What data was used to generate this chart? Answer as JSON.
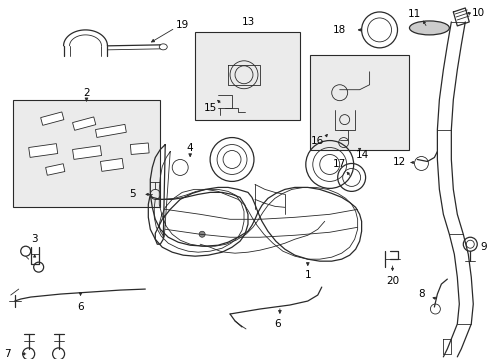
{
  "bg_color": "#ffffff",
  "line_color": "#2a2a2a",
  "label_color": "#000000",
  "fig_width": 4.89,
  "fig_height": 3.6,
  "dpi": 100,
  "tank_color": "#f8f8f8",
  "box_color": "#ebebeb"
}
